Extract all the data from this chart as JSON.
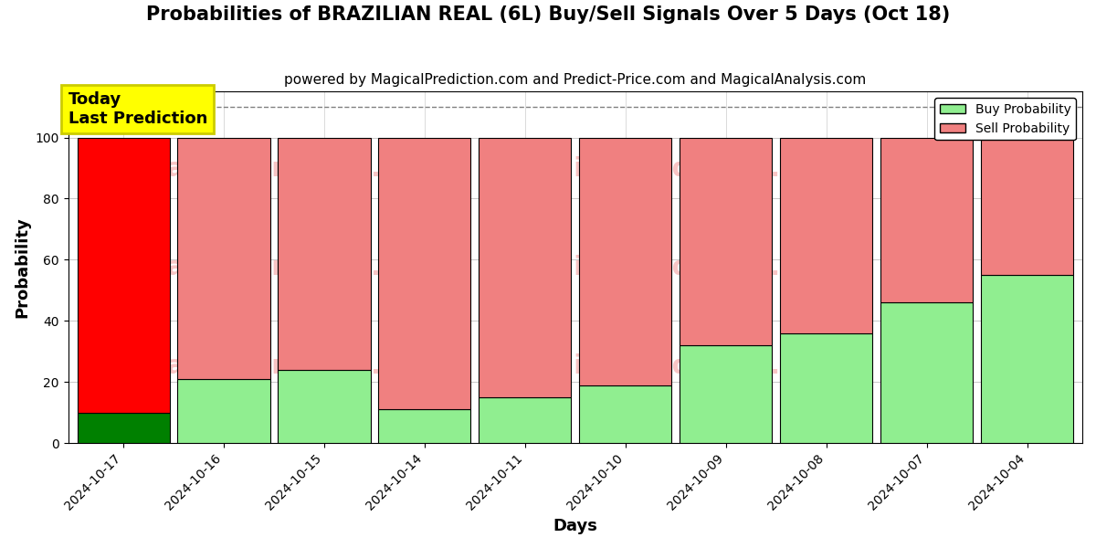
{
  "title": "Probabilities of BRAZILIAN REAL (6L) Buy/Sell Signals Over 5 Days (Oct 18)",
  "subtitle": "powered by MagicalPrediction.com and Predict-Price.com and MagicalAnalysis.com",
  "xlabel": "Days",
  "ylabel": "Probability",
  "dates": [
    "2024-10-17",
    "2024-10-16",
    "2024-10-15",
    "2024-10-14",
    "2024-10-11",
    "2024-10-10",
    "2024-10-09",
    "2024-10-08",
    "2024-10-07",
    "2024-10-04"
  ],
  "buy_probs": [
    10,
    21,
    24,
    11,
    15,
    19,
    32,
    36,
    46,
    55
  ],
  "sell_probs": [
    90,
    79,
    76,
    89,
    85,
    81,
    68,
    64,
    54,
    45
  ],
  "buy_color_today": "#008000",
  "sell_color_today": "#FF0000",
  "buy_color_rest": "#90EE90",
  "sell_color_rest": "#F08080",
  "today_label_bg": "#FFFF00",
  "today_label_text": "Today\nLast Prediction",
  "dashed_line_y": 110,
  "ylim": [
    0,
    115
  ],
  "yticks": [
    0,
    20,
    40,
    60,
    80,
    100
  ],
  "legend_buy": "Buy Probability",
  "legend_sell": "Sell Probability",
  "watermark_color": "#F08080",
  "watermark_alpha": 0.45,
  "bar_edge_color": "#000000",
  "bar_linewidth": 0.8,
  "title_fontsize": 15,
  "subtitle_fontsize": 11,
  "axis_label_fontsize": 13,
  "tick_fontsize": 10,
  "bar_width": 0.92
}
